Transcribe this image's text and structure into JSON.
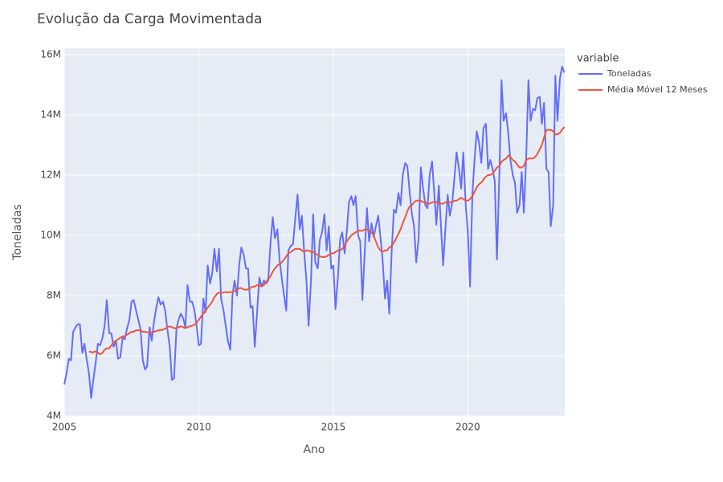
{
  "chart_data": {
    "type": "line",
    "title": "Evolução da Carga Movimentada",
    "x_label": "Ano",
    "y_label": "Toneladas",
    "legend_title": "variable",
    "legend_position": "right",
    "grid": true,
    "xlim": [
      2005,
      2023.6
    ],
    "xticks": [
      2005,
      2010,
      2015,
      2020
    ],
    "ylim": [
      4000000,
      16210000
    ],
    "yticks": [
      {
        "value": 4000000,
        "label": "4M"
      },
      {
        "value": 6000000,
        "label": "6M"
      },
      {
        "value": 8000000,
        "label": "8M"
      },
      {
        "value": 10000000,
        "label": "10M"
      },
      {
        "value": 12000000,
        "label": "12M"
      },
      {
        "value": 14000000,
        "label": "14M"
      },
      {
        "value": 16000000,
        "label": "16M"
      }
    ],
    "x": [
      2005,
      2005.08,
      2005.17,
      2005.25,
      2005.33,
      2005.42,
      2005.5,
      2005.58,
      2005.67,
      2005.75,
      2005.83,
      2005.92,
      2006,
      2006.08,
      2006.17,
      2006.25,
      2006.33,
      2006.42,
      2006.5,
      2006.58,
      2006.67,
      2006.75,
      2006.83,
      2006.92,
      2007,
      2007.08,
      2007.17,
      2007.25,
      2007.33,
      2007.42,
      2007.5,
      2007.58,
      2007.67,
      2007.75,
      2007.83,
      2007.92,
      2008,
      2008.08,
      2008.17,
      2008.25,
      2008.33,
      2008.42,
      2008.5,
      2008.58,
      2008.67,
      2008.75,
      2008.83,
      2008.92,
      2009,
      2009.08,
      2009.17,
      2009.25,
      2009.33,
      2009.42,
      2009.5,
      2009.58,
      2009.67,
      2009.75,
      2009.83,
      2009.92,
      2010,
      2010.08,
      2010.17,
      2010.25,
      2010.33,
      2010.42,
      2010.5,
      2010.58,
      2010.67,
      2010.75,
      2010.83,
      2010.92,
      2011,
      2011.08,
      2011.17,
      2011.25,
      2011.33,
      2011.42,
      2011.5,
      2011.58,
      2011.67,
      2011.75,
      2011.83,
      2011.92,
      2012,
      2012.08,
      2012.17,
      2012.25,
      2012.33,
      2012.42,
      2012.5,
      2012.58,
      2012.67,
      2012.75,
      2012.83,
      2012.92,
      2013,
      2013.08,
      2013.17,
      2013.25,
      2013.33,
      2013.42,
      2013.5,
      2013.58,
      2013.67,
      2013.75,
      2013.83,
      2013.92,
      2014,
      2014.08,
      2014.17,
      2014.25,
      2014.33,
      2014.42,
      2014.5,
      2014.58,
      2014.67,
      2014.75,
      2014.83,
      2014.92,
      2015,
      2015.08,
      2015.17,
      2015.25,
      2015.33,
      2015.42,
      2015.5,
      2015.58,
      2015.67,
      2015.75,
      2015.83,
      2015.92,
      2016,
      2016.08,
      2016.17,
      2016.25,
      2016.33,
      2016.42,
      2016.5,
      2016.58,
      2016.67,
      2016.75,
      2016.83,
      2016.92,
      2017,
      2017.08,
      2017.17,
      2017.25,
      2017.33,
      2017.42,
      2017.5,
      2017.58,
      2017.67,
      2017.75,
      2017.83,
      2017.92,
      2018,
      2018.08,
      2018.17,
      2018.25,
      2018.33,
      2018.42,
      2018.5,
      2018.58,
      2018.67,
      2018.75,
      2018.83,
      2018.92,
      2019,
      2019.08,
      2019.17,
      2019.25,
      2019.33,
      2019.42,
      2019.5,
      2019.58,
      2019.67,
      2019.75,
      2019.83,
      2019.92,
      2020,
      2020.08,
      2020.17,
      2020.25,
      2020.33,
      2020.42,
      2020.5,
      2020.58,
      2020.67,
      2020.75,
      2020.83,
      2020.92,
      2021,
      2021.08,
      2021.17,
      2021.25,
      2021.33,
      2021.42,
      2021.5,
      2021.58,
      2021.67,
      2021.75,
      2021.83,
      2021.92,
      2022,
      2022.08,
      2022.17,
      2022.25,
      2022.33,
      2022.42,
      2022.5,
      2022.58,
      2022.67,
      2022.75,
      2022.83,
      2022.92,
      2023,
      2023.08,
      2023.17,
      2023.25,
      2023.33,
      2023.42,
      2023.5,
      2023.58
    ],
    "series": [
      {
        "name": "Toneladas",
        "color": "#636efa",
        "values": [
          5050000,
          5400000,
          5900000,
          5850000,
          6800000,
          6950000,
          7050000,
          7050000,
          6100000,
          6400000,
          5900000,
          5400000,
          4600000,
          5200000,
          5800000,
          6400000,
          6350000,
          6600000,
          7000000,
          7850000,
          6750000,
          6750000,
          6300000,
          6500000,
          5900000,
          5950000,
          6600000,
          6550000,
          6900000,
          7200000,
          7800000,
          7850000,
          7500000,
          7200000,
          6900000,
          5850000,
          5550000,
          5650000,
          6950000,
          6500000,
          7100000,
          7600000,
          7950000,
          7700000,
          7800000,
          7500000,
          6900000,
          6300000,
          5200000,
          5250000,
          6900000,
          7200000,
          7400000,
          7250000,
          6950000,
          8350000,
          7800000,
          7800000,
          7550000,
          7000000,
          6350000,
          6400000,
          7900000,
          7450000,
          9000000,
          8400000,
          8750000,
          9550000,
          8800000,
          9550000,
          7900000,
          7500000,
          7000000,
          6500000,
          6200000,
          8000000,
          8500000,
          8000000,
          9000000,
          9600000,
          9350000,
          8900000,
          8900000,
          7600000,
          7650000,
          6300000,
          7500000,
          8600000,
          8300000,
          8500000,
          8400000,
          8500000,
          9800000,
          10600000,
          9900000,
          10200000,
          9200000,
          8600000,
          8000000,
          7500000,
          9500000,
          9650000,
          9700000,
          10500000,
          11350000,
          10200000,
          10650000,
          9400000,
          8500000,
          7000000,
          8500000,
          10700000,
          9100000,
          8900000,
          9850000,
          10100000,
          10700000,
          9500000,
          10300000,
          8900000,
          9000000,
          7550000,
          8600000,
          9850000,
          10100000,
          9400000,
          10100000,
          11100000,
          11300000,
          11000000,
          11300000,
          10000000,
          9800000,
          7850000,
          9500000,
          10900000,
          9800000,
          10400000,
          9950000,
          10300000,
          10650000,
          9950000,
          9200000,
          7900000,
          8500000,
          7400000,
          9500000,
          10850000,
          10750000,
          11400000,
          11000000,
          12000000,
          12400000,
          12300000,
          11500000,
          10700000,
          10300000,
          9100000,
          9900000,
          12250000,
          11600000,
          11000000,
          10900000,
          12000000,
          12450000,
          11400000,
          10350000,
          11650000,
          10300000,
          9000000,
          10300000,
          11350000,
          10650000,
          11100000,
          11900000,
          12750000,
          12200000,
          11550000,
          12750000,
          11000000,
          10100000,
          8300000,
          11400000,
          12550000,
          13450000,
          13050000,
          12400000,
          13550000,
          13700000,
          12200000,
          12500000,
          12200000,
          11800000,
          9200000,
          12000000,
          15150000,
          13800000,
          14050000,
          13400000,
          12500000,
          12000000,
          11750000,
          10750000,
          11000000,
          12100000,
          10750000,
          12650000,
          15150000,
          13800000,
          14200000,
          14150000,
          14550000,
          14600000,
          13700000,
          14400000,
          12200000,
          12100000,
          10300000,
          11000000,
          15300000,
          13800000,
          15200000,
          15600000,
          15400000
        ]
      },
      {
        "name": "Média Móvel 12 Meses",
        "color": "#EF553B",
        "values": [
          null,
          null,
          null,
          null,
          null,
          null,
          null,
          null,
          null,
          null,
          null,
          6150000,
          6120000,
          6120000,
          6150000,
          6100000,
          6050000,
          6100000,
          6200000,
          6250000,
          6250000,
          6350000,
          6450000,
          6500000,
          6550000,
          6600000,
          6650000,
          6650000,
          6700000,
          6750000,
          6800000,
          6800000,
          6850000,
          6850000,
          6850000,
          6800000,
          6800000,
          6780000,
          6780000,
          6780000,
          6800000,
          6820000,
          6850000,
          6850000,
          6870000,
          6900000,
          6950000,
          6980000,
          6950000,
          6920000,
          6920000,
          6950000,
          6980000,
          6950000,
          6920000,
          6950000,
          6980000,
          7000000,
          7020000,
          7100000,
          7200000,
          7300000,
          7400000,
          7500000,
          7600000,
          7700000,
          7800000,
          7950000,
          8050000,
          8100000,
          8100000,
          8100000,
          8120000,
          8100000,
          8120000,
          8120000,
          8150000,
          8200000,
          8250000,
          8250000,
          8200000,
          8200000,
          8200000,
          8250000,
          8300000,
          8300000,
          8350000,
          8350000,
          8300000,
          8350000,
          8450000,
          8550000,
          8650000,
          8800000,
          8900000,
          9000000,
          9050000,
          9100000,
          9200000,
          9300000,
          9400000,
          9450000,
          9500000,
          9550000,
          9550000,
          9550000,
          9500000,
          9450000,
          9500000,
          9500000,
          9450000,
          9450000,
          9400000,
          9350000,
          9300000,
          9280000,
          9280000,
          9300000,
          9350000,
          9400000,
          9400000,
          9450000,
          9500000,
          9500000,
          9550000,
          9650000,
          9800000,
          9900000,
          10000000,
          10050000,
          10100000,
          10150000,
          10150000,
          10150000,
          10200000,
          10200000,
          10150000,
          10100000,
          10000000,
          9800000,
          9600000,
          9500000,
          9450000,
          9500000,
          9500000,
          9600000,
          9650000,
          9750000,
          9900000,
          10050000,
          10200000,
          10400000,
          10600000,
          10800000,
          10950000,
          11000000,
          11100000,
          11150000,
          11150000,
          11150000,
          11100000,
          11100000,
          11050000,
          11050000,
          11100000,
          11100000,
          11100000,
          11050000,
          11050000,
          11050000,
          11100000,
          11100000,
          11100000,
          11100000,
          11150000,
          11150000,
          11200000,
          11250000,
          11200000,
          11150000,
          11150000,
          11200000,
          11300000,
          11450000,
          11600000,
          11700000,
          11750000,
          11850000,
          11950000,
          12000000,
          12000000,
          12050000,
          12150000,
          12250000,
          12300000,
          12450000,
          12500000,
          12550000,
          12650000,
          12600000,
          12500000,
          12450000,
          12350000,
          12250000,
          12250000,
          12300000,
          12500000,
          12550000,
          12550000,
          12550000,
          12600000,
          12700000,
          12850000,
          13000000,
          13250000,
          13500000,
          13500000,
          13500000,
          13450000,
          13350000,
          13350000,
          13400000,
          13500000,
          13600000
        ]
      }
    ]
  }
}
